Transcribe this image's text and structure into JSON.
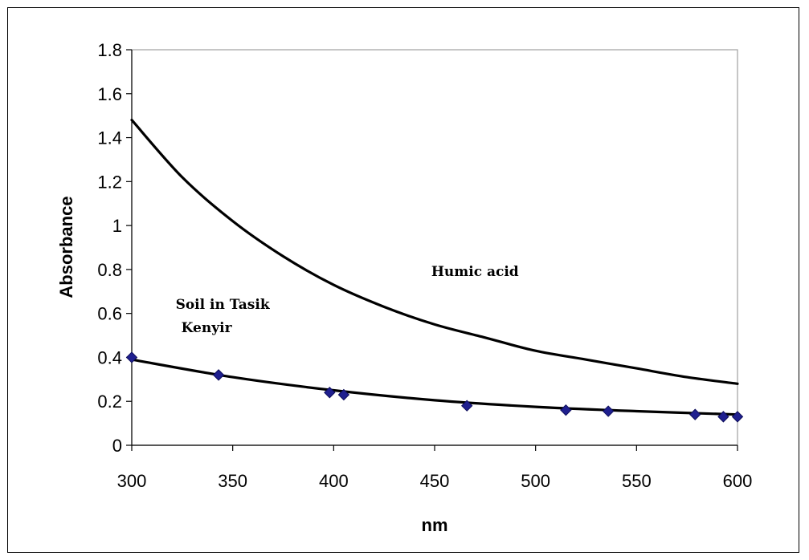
{
  "chart_data": {
    "type": "line",
    "xlabel": "nm",
    "ylabel": "Absorbance",
    "xlim": [
      300,
      600
    ],
    "ylim": [
      0,
      1.8
    ],
    "x_ticks": [
      300,
      350,
      400,
      450,
      500,
      550,
      600
    ],
    "y_ticks": [
      0,
      0.2,
      0.4,
      0.6,
      0.8,
      1,
      1.2,
      1.4,
      1.6,
      1.8
    ],
    "grid": false,
    "series": [
      {
        "name": "Humic acid",
        "style": "line",
        "color": "#000000",
        "x": [
          300,
          325,
          350,
          375,
          400,
          425,
          450,
          475,
          500,
          525,
          550,
          575,
          600
        ],
        "y": [
          1.48,
          1.22,
          1.02,
          0.86,
          0.73,
          0.63,
          0.55,
          0.49,
          0.43,
          0.39,
          0.35,
          0.31,
          0.28
        ]
      },
      {
        "name": "Soil in Tasik Kenyir",
        "style": "line+markers",
        "color": "#000000",
        "marker_color": "#1f1f8f",
        "marker": "diamond",
        "x": [
          300,
          343,
          398,
          405,
          466,
          515,
          536,
          579,
          593,
          600
        ],
        "y": [
          0.4,
          0.32,
          0.24,
          0.23,
          0.18,
          0.16,
          0.155,
          0.14,
          0.13,
          0.13
        ],
        "trend_x": [
          300,
          350,
          400,
          450,
          500,
          550,
          600
        ],
        "trend_y": [
          0.39,
          0.31,
          0.25,
          0.205,
          0.175,
          0.155,
          0.14
        ]
      }
    ],
    "annotations": [
      {
        "text": "Humic acid",
        "x": 470,
        "y": 0.77
      },
      {
        "lines": [
          "Soil in Tasik",
          "Kenyir"
        ],
        "x": 345,
        "y": 0.62
      }
    ]
  }
}
